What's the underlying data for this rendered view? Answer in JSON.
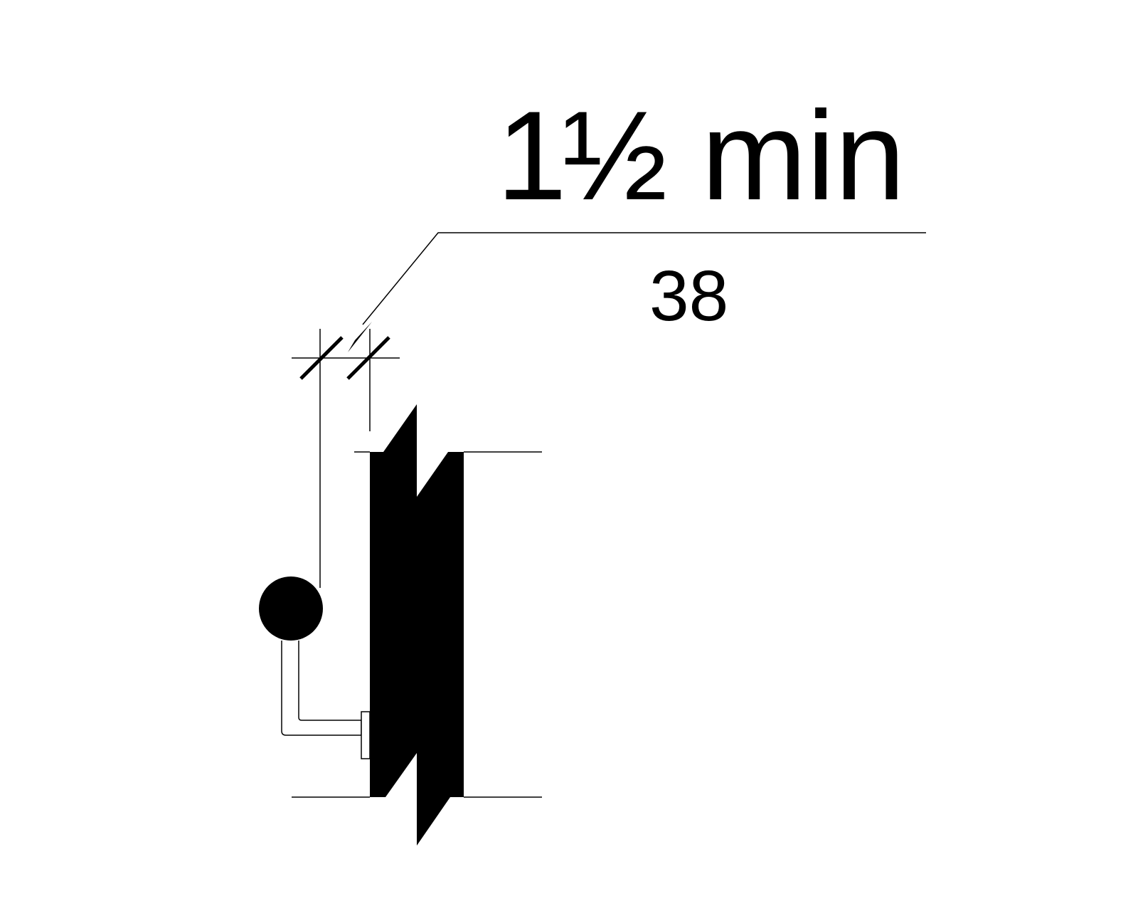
{
  "diagram": {
    "dimension": {
      "imperial": {
        "whole": "1",
        "fraction": "½",
        "suffix": "min"
      },
      "metric": "38"
    }
  },
  "colors": {
    "ink": "#000000",
    "background": "#ffffff"
  }
}
